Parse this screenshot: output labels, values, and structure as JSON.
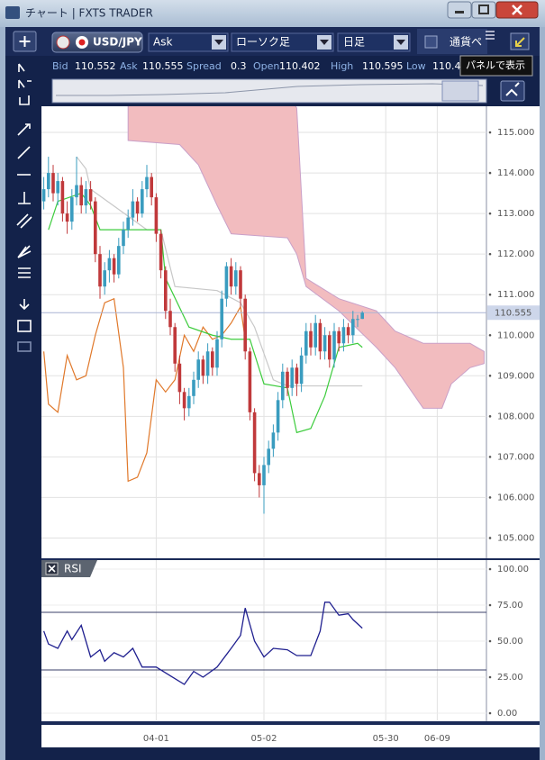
{
  "window": {
    "title": "チャート | FXTS TRADER"
  },
  "toolbar": {
    "symbol": "USD/JPY",
    "price_side": "Ask",
    "chart_type": "ローソク足",
    "timeframe": "日足",
    "pair_panel": "通貨ペ",
    "tooltip": "パネルで表示"
  },
  "quote": {
    "labels": [
      "Bid",
      "Ask",
      "Spread",
      "Open",
      "High",
      "Low"
    ],
    "values": [
      "110.552",
      "110.555",
      "0.3",
      "110.402",
      "110.595",
      "110.40"
    ]
  },
  "price_chart": {
    "type": "candlestick",
    "xlim": [
      -0.5,
      94.5
    ],
    "ylim": [
      104.5,
      115.6
    ],
    "yticks": [
      {
        "value": 105,
        "label": "105.000"
      },
      {
        "value": 106,
        "label": "106.000"
      },
      {
        "value": 107,
        "label": "107.000"
      },
      {
        "value": 108,
        "label": "108.000"
      },
      {
        "value": 109,
        "label": "109.000"
      },
      {
        "value": 110,
        "label": "110.000"
      },
      {
        "value": 111,
        "label": "111.000"
      },
      {
        "value": 112,
        "label": "112.000"
      },
      {
        "value": 113,
        "label": "113.000"
      },
      {
        "value": 114,
        "label": "114.000"
      },
      {
        "value": 115,
        "label": "115.000"
      }
    ],
    "xticks": [
      {
        "value": 24,
        "label": "04-01"
      },
      {
        "value": 47,
        "label": "05-02"
      },
      {
        "value": 73,
        "label": "05-30"
      },
      {
        "value": 84,
        "label": "06-09"
      }
    ],
    "grid": true,
    "up_color": "#3a9cbf",
    "down_color": "#c0393b",
    "candles": [
      [
        113.3,
        113.9,
        113.1,
        113.6
      ],
      [
        113.6,
        114.4,
        113.4,
        114.0
      ],
      [
        114.0,
        114.2,
        113.3,
        113.5
      ],
      [
        113.5,
        114.0,
        113.2,
        113.8
      ],
      [
        113.8,
        113.9,
        112.8,
        113.0
      ],
      [
        113.0,
        113.3,
        112.5,
        112.8
      ],
      [
        112.8,
        113.6,
        112.6,
        113.4
      ],
      [
        113.4,
        114.4,
        113.2,
        113.7
      ],
      [
        113.7,
        113.9,
        113.0,
        113.2
      ],
      [
        113.2,
        113.8,
        113.0,
        113.6
      ],
      [
        113.6,
        113.8,
        113.1,
        113.3
      ],
      [
        113.3,
        113.4,
        111.8,
        112.0
      ],
      [
        112.0,
        112.2,
        110.9,
        111.2
      ],
      [
        111.2,
        111.8,
        111.0,
        111.6
      ],
      [
        111.6,
        112.1,
        111.3,
        111.9
      ],
      [
        111.9,
        112.0,
        111.3,
        111.5
      ],
      [
        111.5,
        112.4,
        111.4,
        112.2
      ],
      [
        112.2,
        112.8,
        112.0,
        112.6
      ],
      [
        112.6,
        113.1,
        112.4,
        112.9
      ],
      [
        112.9,
        113.6,
        112.7,
        113.3
      ],
      [
        113.3,
        113.4,
        112.8,
        113.0
      ],
      [
        113.0,
        113.8,
        112.9,
        113.6
      ],
      [
        113.6,
        114.2,
        113.4,
        113.9
      ],
      [
        113.9,
        114.0,
        113.2,
        113.4
      ],
      [
        113.4,
        113.5,
        112.3,
        112.5
      ],
      [
        112.5,
        112.6,
        111.4,
        111.6
      ],
      [
        111.6,
        111.7,
        110.4,
        110.6
      ],
      [
        110.6,
        110.9,
        110.0,
        110.2
      ],
      [
        110.2,
        110.3,
        109.1,
        109.3
      ],
      [
        109.3,
        109.5,
        108.3,
        108.6
      ],
      [
        108.6,
        108.7,
        107.9,
        108.2
      ],
      [
        108.2,
        108.7,
        108.0,
        108.5
      ],
      [
        108.5,
        109.1,
        108.3,
        108.9
      ],
      [
        108.9,
        109.6,
        108.7,
        109.4
      ],
      [
        109.4,
        109.5,
        108.8,
        109.0
      ],
      [
        109.0,
        109.8,
        108.8,
        109.6
      ],
      [
        109.6,
        109.7,
        109.0,
        109.2
      ],
      [
        109.2,
        110.1,
        109.0,
        109.9
      ],
      [
        109.9,
        111.1,
        109.7,
        110.9
      ],
      [
        110.9,
        111.8,
        110.7,
        111.7
      ],
      [
        111.7,
        111.9,
        111.0,
        111.2
      ],
      [
        111.2,
        111.8,
        111.0,
        111.6
      ],
      [
        111.6,
        111.7,
        110.7,
        110.9
      ],
      [
        110.9,
        111.0,
        109.4,
        109.6
      ],
      [
        109.6,
        109.7,
        107.9,
        108.1
      ],
      [
        108.1,
        108.2,
        106.4,
        106.6
      ],
      [
        106.6,
        106.8,
        106.0,
        106.3
      ],
      [
        106.3,
        107.0,
        105.6,
        106.8
      ],
      [
        106.8,
        107.4,
        106.6,
        107.2
      ],
      [
        107.2,
        107.8,
        107.0,
        107.6
      ],
      [
        107.6,
        108.6,
        107.4,
        108.4
      ],
      [
        108.4,
        109.3,
        108.2,
        109.1
      ],
      [
        109.1,
        109.2,
        108.5,
        108.7
      ],
      [
        108.7,
        109.4,
        108.5,
        109.2
      ],
      [
        109.2,
        109.3,
        108.5,
        108.8
      ],
      [
        108.8,
        109.7,
        108.6,
        109.5
      ],
      [
        109.5,
        110.3,
        109.3,
        110.1
      ],
      [
        110.1,
        110.3,
        109.5,
        109.7
      ],
      [
        109.7,
        110.5,
        109.5,
        110.3
      ],
      [
        110.3,
        110.4,
        109.4,
        109.6
      ],
      [
        109.6,
        110.2,
        109.4,
        110.0
      ],
      [
        110.0,
        110.1,
        109.2,
        109.4
      ],
      [
        109.4,
        110.3,
        109.2,
        110.1
      ],
      [
        110.1,
        110.2,
        109.6,
        109.8
      ],
      [
        109.8,
        110.4,
        109.6,
        110.2
      ],
      [
        110.2,
        110.3,
        109.8,
        110.0
      ],
      [
        110.0,
        110.6,
        109.8,
        110.4
      ],
      [
        110.4,
        110.5,
        110.2,
        110.4
      ],
      [
        110.402,
        110.595,
        110.4,
        110.555
      ]
    ],
    "cloud": {
      "color": "#f2bcbf",
      "edge_color": "#c9a0c8",
      "x": [
        18,
        29,
        33,
        37,
        40,
        52,
        54,
        56,
        63,
        71,
        75,
        81,
        85,
        87,
        91,
        94
      ],
      "upper": [
        116,
        116,
        116,
        116,
        116,
        116,
        115.6,
        111.4,
        110.9,
        110.6,
        110.1,
        109.8,
        109.8,
        109.8,
        109.8,
        109.6
      ],
      "lower": [
        114.8,
        114.7,
        114.2,
        113.2,
        112.5,
        112.4,
        112.0,
        111.2,
        110.6,
        109.7,
        109.2,
        108.2,
        108.2,
        108.8,
        109.2,
        109.3
      ]
    },
    "lines": [
      {
        "color": "#c8c8c8",
        "x": [
          7,
          9,
          10,
          22,
          25,
          28,
          37,
          42,
          45,
          49,
          52,
          68
        ],
        "values": [
          114.4,
          114.1,
          113.6,
          112.6,
          112.6,
          111.2,
          111.1,
          110.8,
          110.2,
          108.9,
          108.75,
          108.75
        ]
      },
      {
        "color": "#e0782a",
        "x": [
          0,
          1,
          3,
          5,
          7,
          9,
          11,
          13,
          15,
          17,
          18,
          20,
          22,
          24,
          26,
          28,
          30,
          32,
          34,
          36,
          38,
          40,
          42,
          43
        ],
        "values": [
          109.6,
          108.3,
          108.1,
          109.5,
          108.9,
          109.0,
          110.0,
          110.8,
          110.9,
          109.2,
          106.4,
          106.5,
          107.1,
          108.9,
          108.6,
          108.9,
          110.0,
          109.6,
          110.2,
          109.9,
          110.0,
          110.3,
          110.7,
          109.9
        ]
      },
      {
        "color": "#3ccc3c",
        "x": [
          1,
          3,
          8,
          10,
          12,
          22,
          25,
          26,
          31,
          36,
          40,
          44,
          47,
          52,
          54,
          57,
          60,
          63,
          67,
          68
        ],
        "values": [
          112.6,
          113.3,
          113.5,
          113.2,
          112.6,
          112.6,
          112.6,
          111.4,
          110.2,
          110.0,
          109.9,
          109.9,
          108.8,
          108.7,
          107.6,
          107.7,
          108.5,
          109.7,
          109.8,
          109.7
        ]
      }
    ],
    "current_price": {
      "value": 110.555,
      "label": "110.555"
    }
  },
  "rsi": {
    "title": "RSI",
    "ylim": [
      -5,
      106.25
    ],
    "yticks": [
      {
        "value": 0,
        "label": "0.00"
      },
      {
        "value": 25,
        "label": "25.00"
      },
      {
        "value": 50,
        "label": "50.00"
      },
      {
        "value": 75,
        "label": "75.00"
      },
      {
        "value": 100,
        "label": "100.00"
      }
    ],
    "levels": [
      70,
      30
    ],
    "color": "#1f1f8f",
    "x": [
      0,
      1,
      3,
      5,
      6,
      8,
      10,
      12,
      13,
      15,
      17,
      19,
      21,
      24,
      27,
      30,
      32,
      34,
      37,
      40,
      42,
      43,
      45,
      47,
      49,
      52,
      54,
      57,
      59,
      60,
      61,
      63,
      65,
      66,
      68
    ],
    "values": [
      57,
      48,
      45,
      57,
      51,
      61,
      39,
      44,
      36,
      42,
      39,
      45,
      32,
      32,
      26,
      20,
      29,
      25,
      32,
      45,
      54,
      73,
      50,
      39,
      45,
      44,
      40,
      40,
      57,
      77,
      77,
      68,
      69,
      65,
      59
    ]
  }
}
